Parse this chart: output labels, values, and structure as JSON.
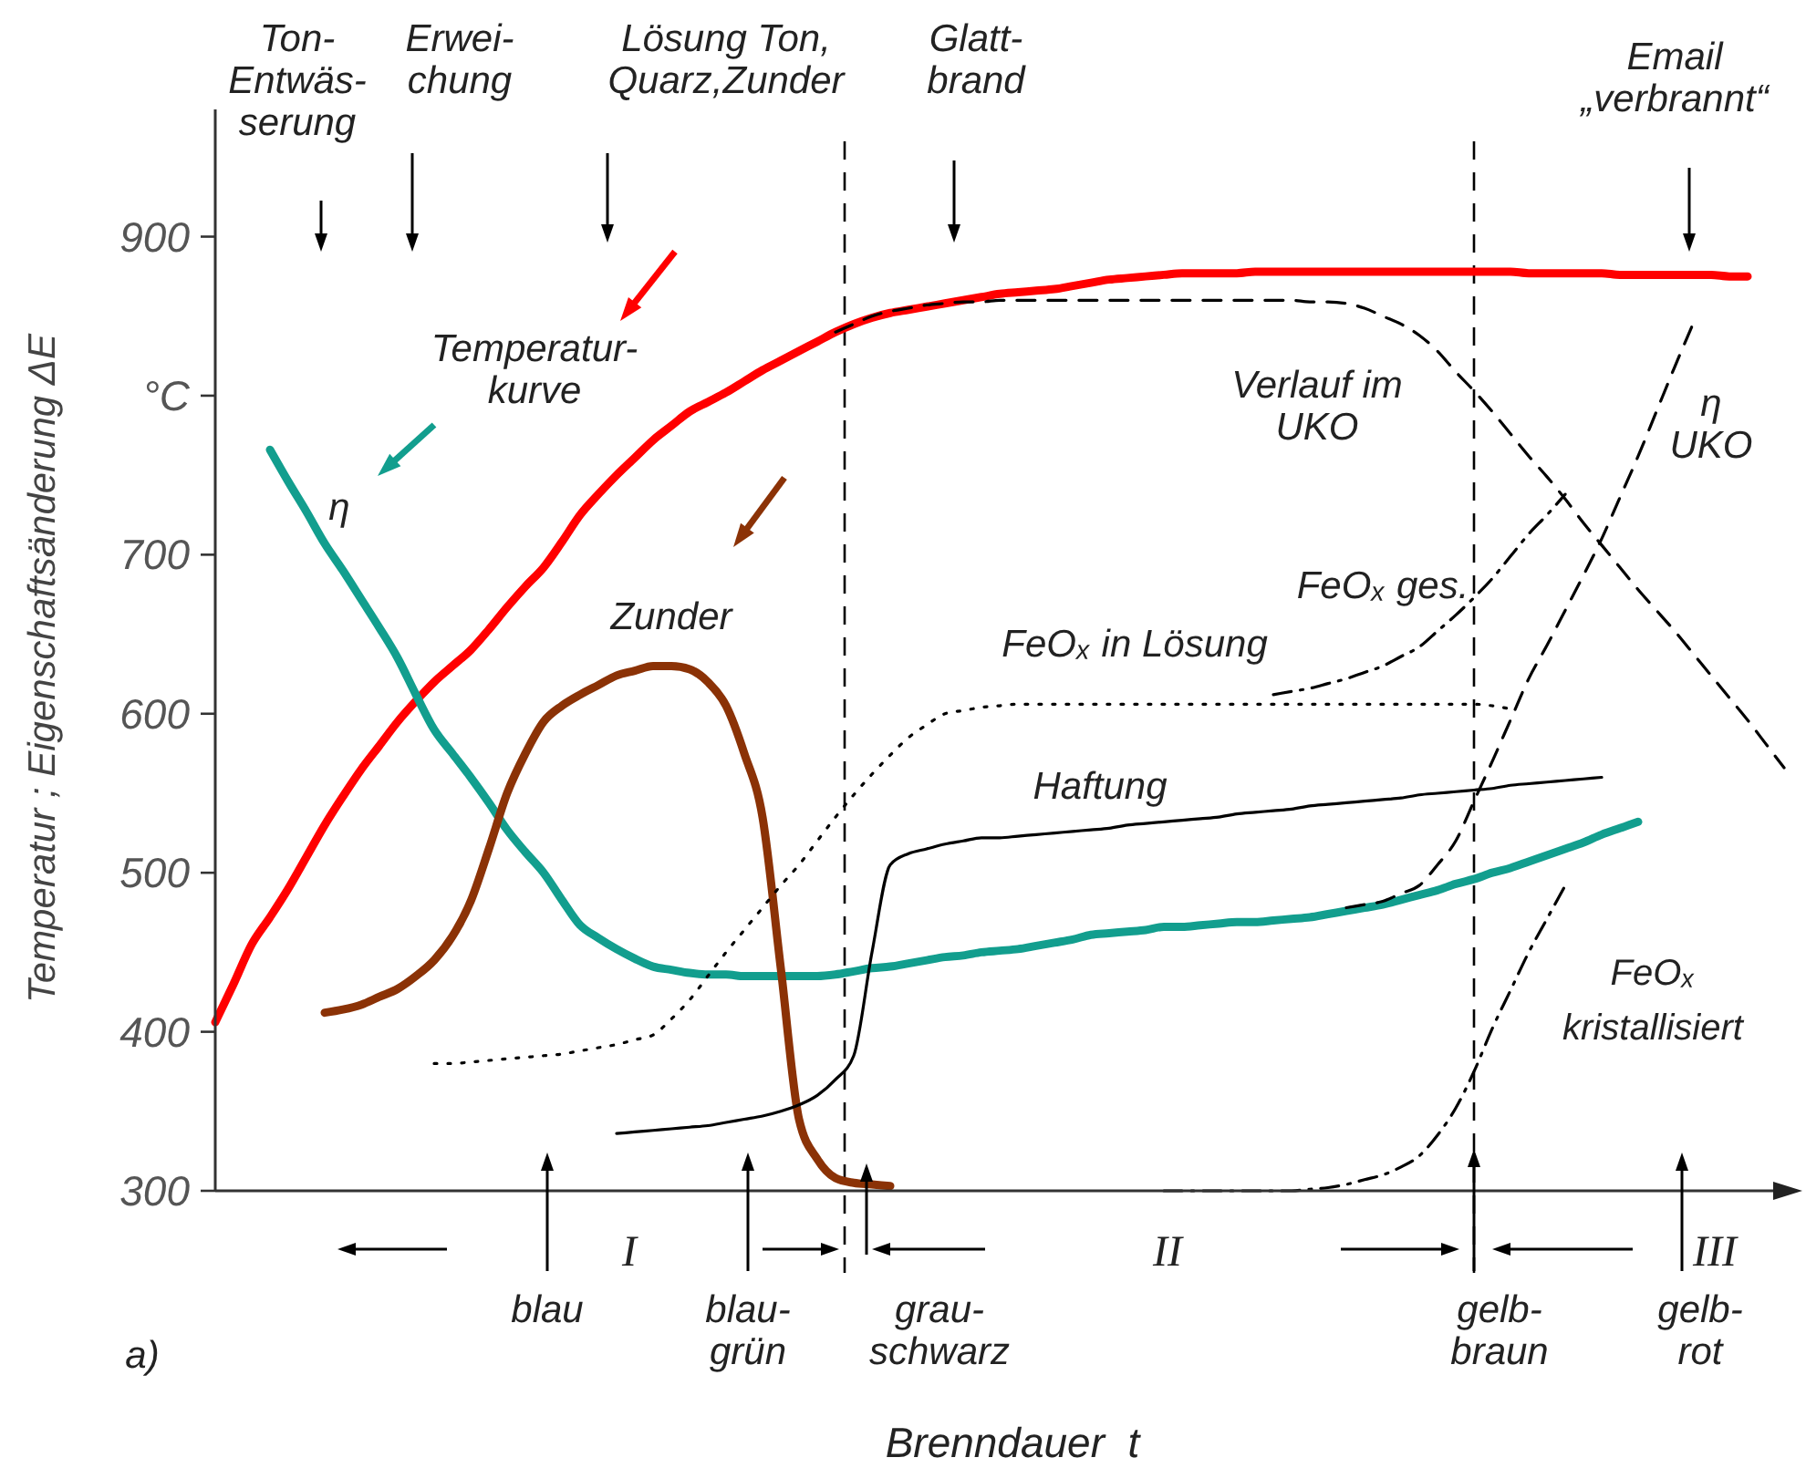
{
  "chart_data": {
    "type": "line",
    "xlabel": "Brenndauer  t",
    "ylabel": "Temperatur ; Eigenschaftsänderung ΔE",
    "ylim": [
      300,
      980
    ],
    "yticks": [
      300,
      400,
      500,
      600,
      700,
      {
        "value": 800,
        "label": "°C"
      },
      900
    ],
    "tick_labels": "y",
    "categories": [
      null,
      null,
      null,
      null,
      null,
      null,
      null,
      null,
      null,
      null,
      null,
      null,
      null,
      null,
      null,
      null,
      null,
      null,
      null,
      null,
      null,
      null,
      null,
      null,
      null,
      null,
      null,
      null,
      null,
      null,
      null,
      null,
      null,
      null,
      null,
      null,
      null,
      null,
      null,
      null,
      null,
      null,
      null,
      null,
      null,
      null,
      null,
      null,
      null,
      null,
      null,
      null,
      null,
      null,
      null,
      null,
      null,
      null,
      null,
      null,
      null,
      null,
      null,
      null,
      null,
      null,
      null,
      null,
      null,
      null,
      null,
      null,
      null,
      null,
      null,
      null,
      null,
      null,
      null,
      null,
      null,
      null,
      null,
      null,
      null,
      null,
      null,
      null
    ],
    "series": [
      {
        "color": "#ff0000",
        "line_style": "solid",
        "values": [
          406,
          430,
          455,
          472,
          490,
          510,
          530,
          548,
          565,
          580,
          595,
          608,
          620,
          630,
          640,
          653,
          667,
          680,
          692,
          708,
          725,
          738,
          750,
          761,
          772,
          781,
          790,
          796,
          802,
          809,
          816,
          822,
          828,
          834,
          840,
          845,
          849,
          852,
          854,
          856,
          858,
          860,
          862,
          864,
          865,
          866,
          867,
          869,
          871,
          873,
          874,
          875,
          876,
          877,
          877,
          877,
          877,
          878,
          878,
          878,
          878,
          878,
          878,
          878,
          878,
          878,
          878,
          878,
          878,
          878,
          878,
          878,
          877,
          877,
          877,
          877,
          877,
          876,
          876,
          876,
          876,
          876,
          876,
          875,
          875,
          null,
          null,
          null
        ]
      },
      {
        "color": "#129e8e",
        "line_style": "solid",
        "values": [
          null,
          null,
          null,
          766,
          746,
          727,
          707,
          690,
          672,
          654,
          635,
          612,
          590,
          575,
          560,
          544,
          527,
          513,
          500,
          483,
          467,
          459,
          452,
          446,
          441,
          439,
          437,
          436,
          436,
          435,
          435,
          435,
          435,
          435,
          436,
          438,
          440,
          441,
          443,
          445,
          447,
          448,
          450,
          451,
          452,
          454,
          456,
          458,
          461,
          462,
          463,
          464,
          466,
          466,
          467,
          468,
          469,
          469,
          470,
          471,
          472,
          474,
          476,
          478,
          480,
          483,
          486,
          489,
          493,
          496,
          500,
          503,
          507,
          511,
          515,
          519,
          524,
          528,
          532,
          null,
          null,
          null,
          null,
          null,
          null,
          null,
          null,
          null
        ]
      },
      {
        "color": "#8b3206",
        "line_style": "solid",
        "values": [
          null,
          null,
          null,
          null,
          null,
          null,
          412,
          414,
          417,
          422,
          427,
          435,
          445,
          460,
          482,
          515,
          550,
          575,
          595,
          605,
          612,
          618,
          624,
          627,
          630,
          630,
          628,
          620,
          605,
          575,
          535,
          440,
          345,
          320,
          308,
          305,
          304,
          303,
          null,
          null,
          null,
          null,
          null,
          null,
          null,
          null,
          null,
          null,
          null,
          null,
          null,
          null,
          null,
          null,
          null,
          null,
          null,
          null,
          null,
          null,
          null,
          null,
          null,
          null,
          null,
          null,
          null,
          null,
          null,
          null,
          null,
          null,
          null,
          null,
          null,
          null,
          null,
          null,
          null,
          null,
          null,
          null,
          null,
          null,
          null,
          null,
          null,
          null
        ]
      },
      {
        "color": "#000000",
        "line_style": "dashed",
        "values": [
          null,
          null,
          null,
          null,
          null,
          null,
          null,
          null,
          null,
          null,
          null,
          null,
          null,
          null,
          null,
          null,
          null,
          null,
          null,
          null,
          null,
          null,
          null,
          null,
          null,
          null,
          null,
          null,
          null,
          null,
          null,
          null,
          null,
          null,
          840,
          845,
          850,
          853,
          855,
          857,
          858,
          859,
          859,
          860,
          860,
          860,
          860,
          860,
          860,
          860,
          860,
          860,
          860,
          860,
          860,
          860,
          860,
          860,
          860,
          860,
          859,
          859,
          858,
          855,
          850,
          845,
          838,
          828,
          815,
          803,
          790,
          776,
          762,
          749,
          735,
          720,
          706,
          692,
          678,
          665,
          652,
          638,
          624,
          610,
          596,
          581,
          566,
          null
        ]
      },
      {
        "color": "#000000",
        "line_style": "dotted",
        "values": [
          null,
          null,
          null,
          null,
          null,
          null,
          null,
          null,
          null,
          null,
          null,
          null,
          380,
          380,
          381,
          382,
          383,
          384,
          385,
          386,
          388,
          390,
          392,
          395,
          398,
          408,
          420,
          435,
          450,
          464,
          478,
          492,
          505,
          520,
          535,
          549,
          562,
          574,
          585,
          593,
          600,
          602,
          604,
          605,
          606,
          606,
          606,
          606,
          606,
          606,
          606,
          606,
          606,
          606,
          606,
          606,
          606,
          606,
          606,
          606,
          606,
          606,
          606,
          606,
          606,
          606,
          606,
          606,
          606,
          606,
          605,
          603,
          null,
          null,
          null,
          null,
          null,
          null,
          null,
          null,
          null,
          null,
          null,
          null,
          null,
          null,
          null,
          null
        ]
      },
      {
        "color": "#000000",
        "line_style": "solid",
        "values": [
          null,
          null,
          null,
          null,
          null,
          null,
          null,
          null,
          null,
          null,
          null,
          null,
          null,
          null,
          null,
          null,
          null,
          null,
          null,
          null,
          null,
          null,
          336,
          337,
          338,
          339,
          340,
          341,
          343,
          345,
          347,
          350,
          354,
          360,
          370,
          385,
          450,
          505,
          512,
          515,
          518,
          520,
          522,
          522,
          523,
          524,
          525,
          526,
          527,
          528,
          530,
          531,
          532,
          533,
          534,
          535,
          537,
          538,
          539,
          540,
          542,
          543,
          544,
          545,
          546,
          547,
          549,
          550,
          551,
          552,
          553,
          555,
          556,
          557,
          558,
          559,
          560,
          null,
          null,
          null,
          null,
          null,
          null,
          null,
          null,
          null,
          null,
          null
        ]
      },
      {
        "color": "#000000",
        "line_style": "dashdot",
        "values": [
          null,
          null,
          null,
          null,
          null,
          null,
          null,
          null,
          null,
          null,
          null,
          null,
          null,
          null,
          null,
          null,
          null,
          null,
          null,
          null,
          null,
          null,
          null,
          null,
          null,
          null,
          null,
          null,
          null,
          null,
          null,
          null,
          null,
          null,
          null,
          null,
          null,
          null,
          null,
          null,
          null,
          null,
          null,
          null,
          null,
          null,
          null,
          null,
          null,
          null,
          null,
          null,
          null,
          null,
          null,
          null,
          null,
          null,
          612,
          614,
          616,
          619,
          622,
          626,
          630,
          636,
          642,
          652,
          662,
          673,
          685,
          699,
          713,
          725,
          738,
          null,
          null,
          null,
          null,
          null,
          null,
          null,
          null,
          null,
          null,
          null,
          null,
          null
        ]
      },
      {
        "color": "#000000",
        "line_style": "dashed",
        "values": [
          null,
          null,
          null,
          null,
          null,
          null,
          null,
          null,
          null,
          null,
          null,
          null,
          null,
          null,
          null,
          null,
          null,
          null,
          null,
          null,
          null,
          null,
          null,
          null,
          null,
          null,
          null,
          null,
          null,
          null,
          null,
          null,
          null,
          null,
          null,
          null,
          null,
          null,
          null,
          null,
          null,
          null,
          null,
          null,
          null,
          null,
          null,
          null,
          null,
          null,
          null,
          null,
          null,
          null,
          null,
          null,
          null,
          null,
          null,
          null,
          null,
          null,
          478,
          480,
          482,
          487,
          492,
          505,
          520,
          545,
          570,
          596,
          622,
          643,
          665,
          687,
          710,
          736,
          762,
          790,
          818,
          845,
          null,
          null,
          null,
          null,
          null,
          null
        ]
      },
      {
        "color": "#000000",
        "line_style": "dashdot",
        "values": [
          null,
          null,
          null,
          null,
          null,
          null,
          null,
          null,
          null,
          null,
          null,
          null,
          null,
          null,
          null,
          null,
          null,
          null,
          null,
          null,
          null,
          null,
          null,
          null,
          null,
          null,
          null,
          null,
          null,
          null,
          null,
          null,
          null,
          null,
          null,
          null,
          null,
          null,
          null,
          null,
          null,
          null,
          null,
          null,
          null,
          null,
          null,
          null,
          null,
          null,
          null,
          null,
          300,
          300,
          300,
          300,
          300,
          300,
          300,
          300,
          301,
          302,
          304,
          307,
          310,
          315,
          322,
          335,
          352,
          375,
          402,
          426,
          450,
          471,
          492,
          null,
          null,
          null,
          null,
          null,
          null,
          null,
          null,
          null,
          null,
          null,
          null,
          null
        ]
      }
    ],
    "annotations": [
      "Ton-\nEntwäs-\nserung",
      "Erwei-\nchung",
      "Lösung Ton,\nQuarz,Zunder",
      "Glatt-\nbrand",
      "Email\n„verbrannt“",
      "blau",
      "blau-\ngrün",
      "grau-\nschwarz",
      "gelb-\nbraun",
      "gelb-\nrot",
      "Temperatur-\nkurve",
      "η",
      "Zunder",
      "Verlauf im\nUKO",
      "η\nUKO",
      "FeOₓ ges.",
      "FeOₓ in Lösung",
      "Haftung",
      "FeOₓ\nkristallisiert",
      "a)",
      "I",
      "II",
      "III"
    ]
  }
}
